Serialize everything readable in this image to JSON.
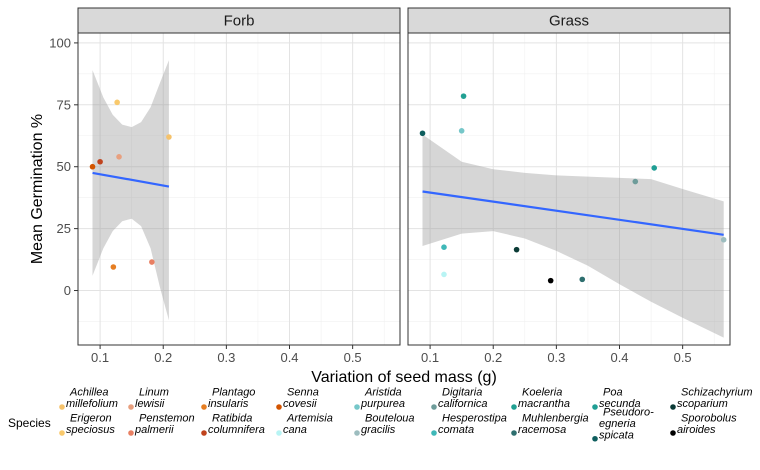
{
  "chart_data": {
    "type": "scatter",
    "xlabel": "Variation of seed mass (g)",
    "ylabel": "Mean Germination %",
    "xlim": [
      0.065,
      0.575
    ],
    "ylim": [
      -22,
      104
    ],
    "x_ticks": [
      0.1,
      0.2,
      0.3,
      0.4,
      0.5
    ],
    "x_tick_labels": [
      "0.1",
      "0.2",
      "0.3",
      "0.4",
      "0.5"
    ],
    "y_ticks": [
      0,
      25,
      50,
      75,
      100
    ],
    "y_tick_labels": [
      "0",
      "25",
      "50",
      "75",
      "100"
    ],
    "grid": true,
    "legend_title": "Species",
    "legend_position": "bottom",
    "species": [
      {
        "name": "Achillea millefolium",
        "line1": "Achillea",
        "line2": "millefolium",
        "color": "#F5C26B"
      },
      {
        "name": "Erigeron speciosus",
        "line1": "Erigeron",
        "line2": "speciosus",
        "color": "#F9C96C"
      },
      {
        "name": "Linum lewisii",
        "line1": "Linum",
        "line2": "lewisii",
        "color": "#E8A07F"
      },
      {
        "name": "Penstemon palmerii",
        "line1": "Penstemon",
        "line2": "palmerii",
        "color": "#E98063"
      },
      {
        "name": "Plantago insularis",
        "line1": "Plantago",
        "line2": "insularis",
        "color": "#E67E22"
      },
      {
        "name": "Ratibida columnifera",
        "line1": "Ratibida",
        "line2": "columnifera",
        "color": "#C0431D"
      },
      {
        "name": "Senna covesii",
        "line1": "Senna",
        "line2": "covesii",
        "color": "#D35400"
      },
      {
        "name": "Artemisia cana",
        "line1": "Artemisia",
        "line2": "cana",
        "color": "#B8F4F4"
      },
      {
        "name": "Aristida purpurea",
        "line1": "Aristida",
        "line2": "purpurea",
        "color": "#76C7C9"
      },
      {
        "name": "Bouteloua gracilis",
        "line1": "Bouteloua",
        "line2": "gracilis",
        "color": "#9DBDBF"
      },
      {
        "name": "Digitaria californica",
        "line1": "Digitaria",
        "line2": "californica",
        "color": "#6E9C9A"
      },
      {
        "name": "Hesperostipa comata",
        "line1": "Hesperostipa",
        "line2": "comata",
        "color": "#3FB8B8"
      },
      {
        "name": "Koeleria macrantha",
        "line1": "Koeleria",
        "line2": "macrantha",
        "color": "#21A092"
      },
      {
        "name": "Muhlenbergia racemosa",
        "line1": "Muhlenbergia",
        "line2": "racemosa",
        "color": "#2E6F6F"
      },
      {
        "name": "Poa secunda",
        "line1": "Poa",
        "line2": "secunda",
        "color": "#1F9E94"
      },
      {
        "name": "Pseudoroegneria spicata",
        "line1": "Pseudoro-",
        "line2": "egneria",
        "line3": "spicata",
        "color": "#0E5E5E"
      },
      {
        "name": "Schizachyrium scoparium",
        "line1": "Schizachyrium",
        "line2": "scoparium",
        "color": "#0B3B36"
      },
      {
        "name": "Sporobolus airoides",
        "line1": "Sporobolus",
        "line2": "airoides",
        "color": "#000000"
      }
    ],
    "panels": [
      {
        "title": "Forb",
        "points": [
          {
            "species": "Erigeron speciosus",
            "x": 0.127,
            "y": 76
          },
          {
            "species": "Achillea millefolium",
            "x": 0.209,
            "y": 62
          },
          {
            "species": "Linum lewisii",
            "x": 0.13,
            "y": 54
          },
          {
            "species": "Ratibida columnifera",
            "x": 0.1,
            "y": 52
          },
          {
            "species": "Senna covesii",
            "x": 0.088,
            "y": 50
          },
          {
            "species": "Penstemon palmerii",
            "x": 0.182,
            "y": 11.5
          },
          {
            "species": "Plantago insularis",
            "x": 0.121,
            "y": 9.5
          }
        ],
        "trend": {
          "x": [
            0.088,
            0.209
          ],
          "y": [
            47.5,
            42
          ]
        },
        "ribbon": {
          "x": [
            0.088,
            0.105,
            0.12,
            0.135,
            0.15,
            0.165,
            0.18,
            0.195,
            0.209
          ],
          "upper": [
            89,
            78,
            71,
            67,
            66,
            68,
            74,
            84,
            93
          ],
          "lower": [
            6,
            17,
            24,
            28,
            29,
            26,
            17,
            1,
            -12
          ]
        }
      },
      {
        "title": "Grass",
        "points": [
          {
            "species": "Koeleria macrantha",
            "x": 0.153,
            "y": 78.5
          },
          {
            "species": "Pseudoroegneria spicata",
            "x": 0.088,
            "y": 63.5
          },
          {
            "species": "Aristida purpurea",
            "x": 0.15,
            "y": 64.5
          },
          {
            "species": "Poa secunda",
            "x": 0.455,
            "y": 49.5
          },
          {
            "species": "Digitaria californica",
            "x": 0.425,
            "y": 44
          },
          {
            "species": "Bouteloua gracilis",
            "x": 0.565,
            "y": 20.5
          },
          {
            "species": "Hesperostipa comata",
            "x": 0.122,
            "y": 17.5
          },
          {
            "species": "Schizachyrium scoparium",
            "x": 0.237,
            "y": 16.5
          },
          {
            "species": "Artemisia cana",
            "x": 0.122,
            "y": 6.5
          },
          {
            "species": "Sporobolus airoides",
            "x": 0.291,
            "y": 4
          },
          {
            "species": "Muhlenbergia racemosa",
            "x": 0.341,
            "y": 4.5
          }
        ],
        "trend": {
          "x": [
            0.088,
            0.565
          ],
          "y": [
            40,
            22.5
          ]
        },
        "ribbon": {
          "x": [
            0.088,
            0.15,
            0.2,
            0.25,
            0.3,
            0.35,
            0.4,
            0.45,
            0.5,
            0.565
          ],
          "upper": [
            63,
            52,
            49,
            47.5,
            46.5,
            46,
            45.5,
            45,
            41,
            36
          ],
          "lower": [
            18,
            23,
            24,
            21,
            16,
            10,
            2.5,
            -4.5,
            -11,
            -19
          ]
        }
      }
    ]
  }
}
